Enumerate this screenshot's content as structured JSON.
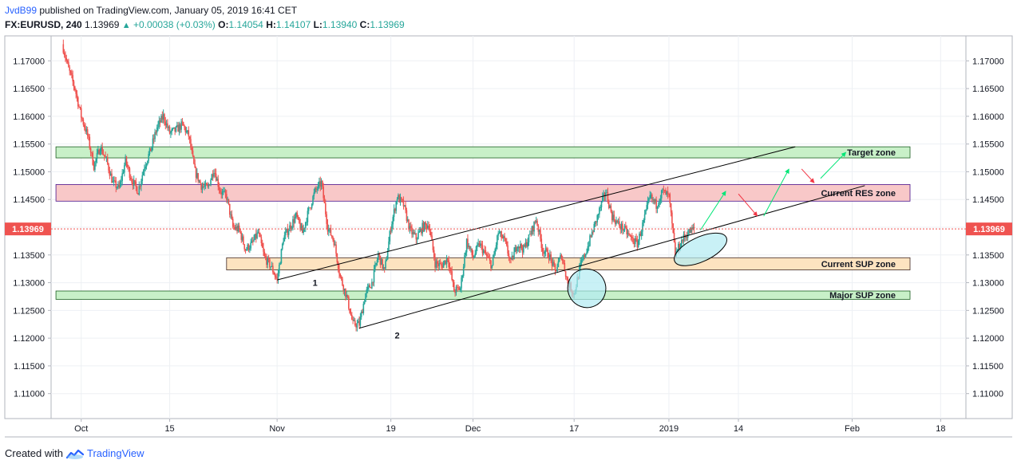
{
  "header": {
    "author": "JvdB99",
    "published_text": "published on TradingView.com, January 05, 2019 16:41 CET",
    "symbol": "FX:EURUSD, 240",
    "last": "1.13969",
    "change": "+0.00038 (+0.03%)",
    "o_label": "O:",
    "o_value": "1.14054",
    "h_label": "H:",
    "h_value": "1.14107",
    "l_label": "L:",
    "l_value": "1.13940",
    "c_label": "C:",
    "c_value": "1.13969"
  },
  "footer": {
    "created_with": "Created with",
    "brand": "TradingView"
  },
  "colors": {
    "bull": "#26a69a",
    "bear": "#ef5350",
    "target_zone": "#c8f0c8",
    "res_zone": "#f8c8c8",
    "sup_zone": "#fde3c0",
    "major_sup_zone": "#c8f0c8",
    "ellipse": "#b2ebf2",
    "price_tag": "#ef5350"
  },
  "chart_data": {
    "type": "candlestick",
    "symbol": "FX:EURUSD",
    "interval": "240",
    "ylim": [
      1.1055,
      1.1745
    ],
    "y_ticks": [
      "1.17000",
      "1.16500",
      "1.16000",
      "1.15500",
      "1.15000",
      "1.14500",
      "1.14000",
      "1.13500",
      "1.13000",
      "1.12500",
      "1.12000",
      "1.11500",
      "1.11000"
    ],
    "x_ticks": [
      {
        "label": "Oct",
        "day": 3
      },
      {
        "label": "15",
        "day": 17
      },
      {
        "label": "Nov",
        "day": 34
      },
      {
        "label": "19",
        "day": 52
      },
      {
        "label": "Dec",
        "day": 65
      },
      {
        "label": "17",
        "day": 81
      },
      {
        "label": "2019",
        "day": 96
      },
      {
        "label": "14",
        "day": 107
      },
      {
        "label": "Feb",
        "day": 125
      },
      {
        "label": "18",
        "day": 139
      }
    ],
    "x_day_range": [
      0,
      143
    ],
    "current_price": "1.13969",
    "close_path": [
      [
        0,
        1.173
      ],
      [
        1,
        1.1685
      ],
      [
        2,
        1.165
      ],
      [
        3,
        1.16
      ],
      [
        4,
        1.1565
      ],
      [
        5,
        1.151
      ],
      [
        6,
        1.1545
      ],
      [
        7,
        1.152
      ],
      [
        8,
        1.148
      ],
      [
        9,
        1.147
      ],
      [
        10,
        1.152
      ],
      [
        11,
        1.1485
      ],
      [
        12,
        1.1465
      ],
      [
        13,
        1.151
      ],
      [
        14,
        1.154
      ],
      [
        15,
        1.158
      ],
      [
        16,
        1.16
      ],
      [
        17,
        1.157
      ],
      [
        18,
        1.1575
      ],
      [
        19,
        1.1585
      ],
      [
        20,
        1.1565
      ],
      [
        21,
        1.15
      ],
      [
        22,
        1.1475
      ],
      [
        23,
        1.147
      ],
      [
        24,
        1.1505
      ],
      [
        25,
        1.1465
      ],
      [
        26,
        1.1455
      ],
      [
        27,
        1.14
      ],
      [
        28,
        1.1395
      ],
      [
        29,
        1.136
      ],
      [
        30,
        1.137
      ],
      [
        31,
        1.139
      ],
      [
        32,
        1.1345
      ],
      [
        33,
        1.133
      ],
      [
        34,
        1.1305
      ],
      [
        35,
        1.138
      ],
      [
        36,
        1.14
      ],
      [
        37,
        1.142
      ],
      [
        38,
        1.139
      ],
      [
        39,
        1.143
      ],
      [
        40,
        1.1465
      ],
      [
        41,
        1.148
      ],
      [
        42,
        1.14
      ],
      [
        43,
        1.1375
      ],
      [
        44,
        1.131
      ],
      [
        45,
        1.1275
      ],
      [
        46,
        1.1225
      ],
      [
        47,
        1.1225
      ],
      [
        48,
        1.128
      ],
      [
        49,
        1.13
      ],
      [
        50,
        1.135
      ],
      [
        51,
        1.132
      ],
      [
        52,
        1.14
      ],
      [
        53,
        1.1455
      ],
      [
        54,
        1.144
      ],
      [
        55,
        1.1395
      ],
      [
        56,
        1.138
      ],
      [
        57,
        1.14
      ],
      [
        58,
        1.1405
      ],
      [
        59,
        1.1335
      ],
      [
        60,
        1.133
      ],
      [
        61,
        1.1345
      ],
      [
        62,
        1.1285
      ],
      [
        63,
        1.129
      ],
      [
        64,
        1.1375
      ],
      [
        65,
        1.1345
      ],
      [
        66,
        1.137
      ],
      [
        67,
        1.135
      ],
      [
        68,
        1.133
      ],
      [
        69,
        1.139
      ],
      [
        70,
        1.1375
      ],
      [
        71,
        1.1335
      ],
      [
        72,
        1.137
      ],
      [
        73,
        1.136
      ],
      [
        74,
        1.1385
      ],
      [
        75,
        1.1415
      ],
      [
        76,
        1.136
      ],
      [
        77,
        1.135
      ],
      [
        78,
        1.132
      ],
      [
        79,
        1.135
      ],
      [
        80,
        1.13
      ],
      [
        81,
        1.128
      ],
      [
        82,
        1.133
      ],
      [
        83,
        1.136
      ],
      [
        84,
        1.1395
      ],
      [
        85,
        1.143
      ],
      [
        86,
        1.1465
      ],
      [
        87,
        1.142
      ],
      [
        88,
        1.1405
      ],
      [
        89,
        1.1395
      ],
      [
        90,
        1.138
      ],
      [
        91,
        1.137
      ],
      [
        92,
        1.141
      ],
      [
        93,
        1.1455
      ],
      [
        94,
        1.144
      ],
      [
        95,
        1.1465
      ],
      [
        96,
        1.1455
      ],
      [
        97,
        1.135
      ],
      [
        98,
        1.1375
      ],
      [
        99,
        1.139
      ],
      [
        100,
        1.1397
      ]
    ],
    "zones": [
      {
        "name": "Target zone",
        "y0": 1.1525,
        "y1": 1.1545,
        "day_start": -1,
        "day_end": 143
      },
      {
        "name": "Current RES zone",
        "y0": 1.1447,
        "y1": 1.1477,
        "day_start": -1,
        "day_end": 143
      },
      {
        "name": "Current SUP zone",
        "y0": 1.1323,
        "y1": 1.1345,
        "day_start": 26,
        "day_end": 143
      },
      {
        "name": "Major SUP zone",
        "y0": 1.127,
        "y1": 1.1285,
        "day_start": -1,
        "day_end": 143
      }
    ],
    "trendlines": [
      {
        "from": [
          34,
          1.1305
        ],
        "to": [
          116,
          1.1545
        ]
      },
      {
        "from": [
          47,
          1.1218
        ],
        "to": [
          127,
          1.1475
        ]
      },
      {
        "from": [
          27,
          1.139
        ],
        "to": [
          27,
          1.139
        ]
      }
    ],
    "annotations": [
      {
        "text": "1",
        "day": 40,
        "y": 1.13
      },
      {
        "text": "2",
        "day": 53,
        "y": 1.1205
      }
    ],
    "forecast_arrows": [
      {
        "color": "green",
        "from": [
          101,
          1.1395
        ],
        "to": [
          105,
          1.1465
        ]
      },
      {
        "color": "red",
        "from": [
          107,
          1.146
        ],
        "to": [
          110,
          1.142
        ]
      },
      {
        "color": "green",
        "from": [
          111,
          1.142
        ],
        "to": [
          115,
          1.1505
        ]
      },
      {
        "color": "red",
        "from": [
          117,
          1.1505
        ],
        "to": [
          119,
          1.148
        ]
      },
      {
        "color": "green",
        "from": [
          120,
          1.1488
        ],
        "to": [
          124,
          1.1535
        ]
      }
    ],
    "ellipses": [
      {
        "day": 83,
        "y": 1.129,
        "rx_days": 3.0,
        "ry": 0.0035
      },
      {
        "day": 101,
        "y": 1.136,
        "rx_days": 4.5,
        "ry": 0.0022
      }
    ]
  }
}
